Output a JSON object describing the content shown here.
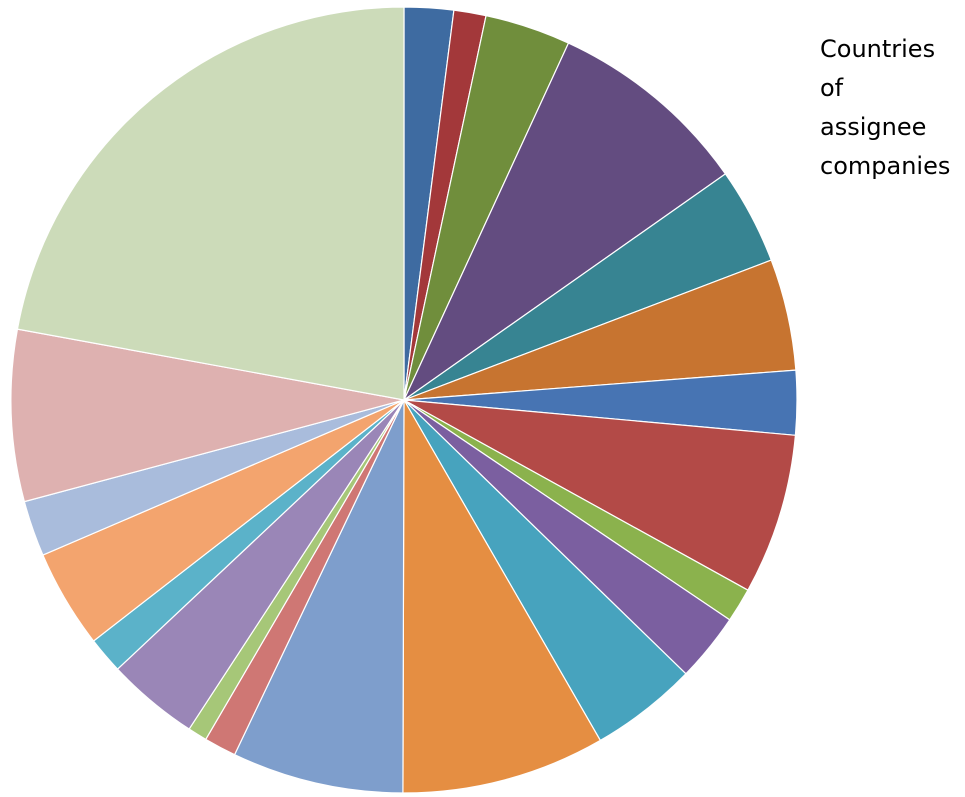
{
  "chart_data": {
    "type": "pie",
    "title": "Countries\nof\nassignee\ncompanies",
    "start_angle_deg": 0,
    "direction": "clockwise",
    "legend": "none",
    "slices": [
      {
        "value": 2.3,
        "color": "#3E6BA1"
      },
      {
        "value": 1.5,
        "color": "#A3383A"
      },
      {
        "value": 4.0,
        "color": "#708E3C"
      },
      {
        "value": 9.5,
        "color": "#634C80"
      },
      {
        "value": 4.5,
        "color": "#378492"
      },
      {
        "value": 5.2,
        "color": "#C77430"
      },
      {
        "value": 3.0,
        "color": "#4774B3"
      },
      {
        "value": 7.5,
        "color": "#B34A47"
      },
      {
        "value": 1.6,
        "color": "#8BB24D"
      },
      {
        "value": 3.2,
        "color": "#7B5FA0"
      },
      {
        "value": 5.0,
        "color": "#47A3BE"
      },
      {
        "value": 9.5,
        "color": "#E58E42"
      },
      {
        "value": 8.0,
        "color": "#7E9ECC"
      },
      {
        "value": 1.5,
        "color": "#CF7774"
      },
      {
        "value": 0.9,
        "color": "#A6C778"
      },
      {
        "value": 4.3,
        "color": "#9A86B7"
      },
      {
        "value": 1.7,
        "color": "#5BB2C9"
      },
      {
        "value": 4.6,
        "color": "#F3A46E"
      },
      {
        "value": 2.6,
        "color": "#A9BCDC"
      },
      {
        "value": 8.0,
        "color": "#DEB1B0"
      },
      {
        "value": 25.1,
        "color": "#CCDBB9"
      }
    ]
  }
}
